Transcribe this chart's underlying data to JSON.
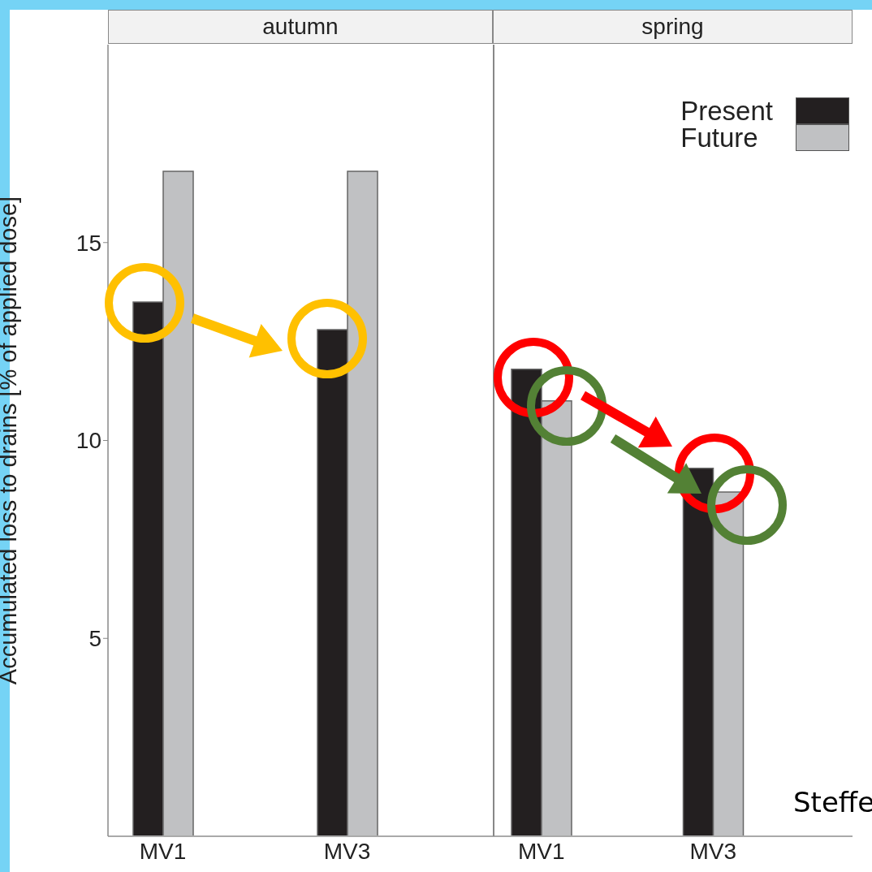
{
  "chart_data": [
    {
      "type": "bar",
      "title": "autumn",
      "categories": [
        "MV1",
        "MV3"
      ],
      "ylabel": "Accumulated loss to drains [% of applied dose]",
      "ylim": [
        0,
        20
      ],
      "yticks": [
        5,
        10,
        15
      ],
      "grid": false,
      "series": [
        {
          "color": "#231f20",
          "values": [
            13.5,
            12.8
          ]
        },
        {
          "color": "#c0c1c3",
          "values": [
            16.8,
            16.8
          ]
        }
      ]
    },
    {
      "type": "bar",
      "title": "spring",
      "categories": [
        "MV1",
        "MV3"
      ],
      "ylim": [
        0,
        20
      ],
      "yticks": [
        5,
        10,
        15
      ],
      "grid": false,
      "tick_labels": "x",
      "legend": "top right",
      "annotations": [
        "Steffe"
      ],
      "series": [
        {
          "name": "Present",
          "color": "#231f20",
          "values": [
            11.8,
            9.3
          ]
        },
        {
          "name": "Future",
          "color": "#c0c1c3",
          "values": [
            11.0,
            8.7
          ]
        }
      ]
    }
  ]
}
